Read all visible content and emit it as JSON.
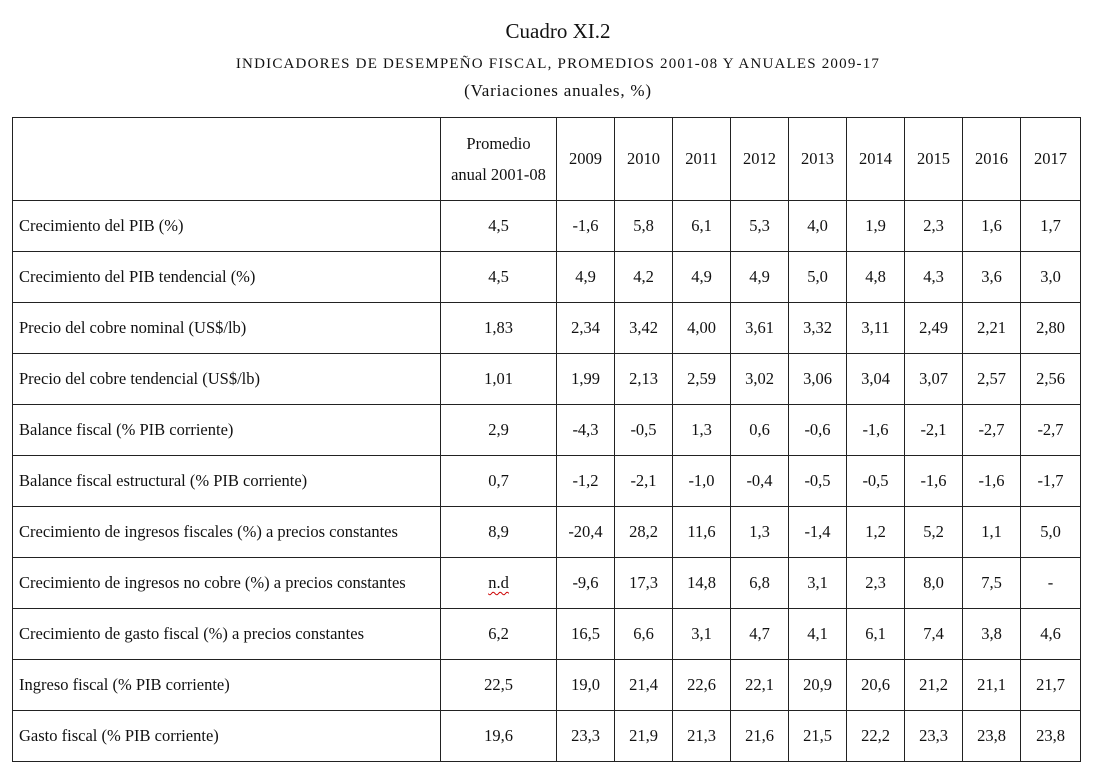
{
  "header": {
    "title": "Cuadro XI.2",
    "subtitle": "INDICADORES DE DESEMPEÑO FISCAL, PROMEDIOS 2001-08 Y ANUALES 2009-17",
    "units": "(Variaciones anuales, %)"
  },
  "table": {
    "avg_header_line1": "Promedio",
    "avg_header_line2": "anual 2001-08",
    "years": [
      "2009",
      "2010",
      "2011",
      "2012",
      "2013",
      "2014",
      "2015",
      "2016",
      "2017"
    ],
    "rows": [
      {
        "label": "Crecimiento del PIB (%)",
        "avg": "4,5",
        "values": [
          "-1,6",
          "5,8",
          "6,1",
          "5,3",
          "4,0",
          "1,9",
          "2,3",
          "1,6",
          "1,7"
        ]
      },
      {
        "label": "Crecimiento del PIB tendencial (%)",
        "avg": "4,5",
        "values": [
          "4,9",
          "4,2",
          "4,9",
          "4,9",
          "5,0",
          "4,8",
          "4,3",
          "3,6",
          "3,0"
        ]
      },
      {
        "label": "Precio del cobre nominal (US$/lb)",
        "avg": "1,83",
        "values": [
          "2,34",
          "3,42",
          "4,00",
          "3,61",
          "3,32",
          "3,11",
          "2,49",
          "2,21",
          "2,80"
        ]
      },
      {
        "label": "Precio del cobre tendencial (US$/lb)",
        "avg": "1,01",
        "values": [
          "1,99",
          "2,13",
          "2,59",
          "3,02",
          "3,06",
          "3,04",
          "3,07",
          "2,57",
          "2,56"
        ]
      },
      {
        "label": "Balance fiscal (% PIB corriente)",
        "avg": "2,9",
        "values": [
          "-4,3",
          "-0,5",
          "1,3",
          "0,6",
          "-0,6",
          "-1,6",
          "-2,1",
          "-2,7",
          "-2,7"
        ]
      },
      {
        "label": "Balance fiscal estructural (% PIB corriente)",
        "avg": "0,7",
        "values": [
          "-1,2",
          "-2,1",
          "-1,0",
          "-0,4",
          "-0,5",
          "-0,5",
          "-1,6",
          "-1,6",
          "-1,7"
        ]
      },
      {
        "label": "Crecimiento de ingresos fiscales (%) a precios constantes",
        "avg": "8,9",
        "values": [
          "-20,4",
          "28,2",
          "11,6",
          "1,3",
          "-1,4",
          "1,2",
          "5,2",
          "1,1",
          "5,0"
        ]
      },
      {
        "label": "Crecimiento de ingresos no cobre (%) a precios constantes",
        "avg": "n.d",
        "values": [
          "-9,6",
          "17,3",
          "14,8",
          "6,8",
          "3,1",
          "2,3",
          "8,0",
          "7,5",
          "-"
        ]
      },
      {
        "label": "Crecimiento de gasto fiscal (%) a precios constantes",
        "avg": "6,2",
        "values": [
          "16,5",
          "6,6",
          "3,1",
          "4,7",
          "4,1",
          "6,1",
          "7,4",
          "3,8",
          "4,6"
        ]
      },
      {
        "label": "Ingreso fiscal (% PIB corriente)",
        "avg": "22,5",
        "values": [
          "19,0",
          "21,4",
          "22,6",
          "22,1",
          "20,9",
          "20,6",
          "21,2",
          "21,1",
          "21,7"
        ]
      },
      {
        "label": "Gasto fiscal (% PIB corriente)",
        "avg": "19,6",
        "values": [
          "23,3",
          "21,9",
          "21,3",
          "21,6",
          "21,5",
          "22,2",
          "23,3",
          "23,8",
          "23,8"
        ]
      }
    ]
  }
}
